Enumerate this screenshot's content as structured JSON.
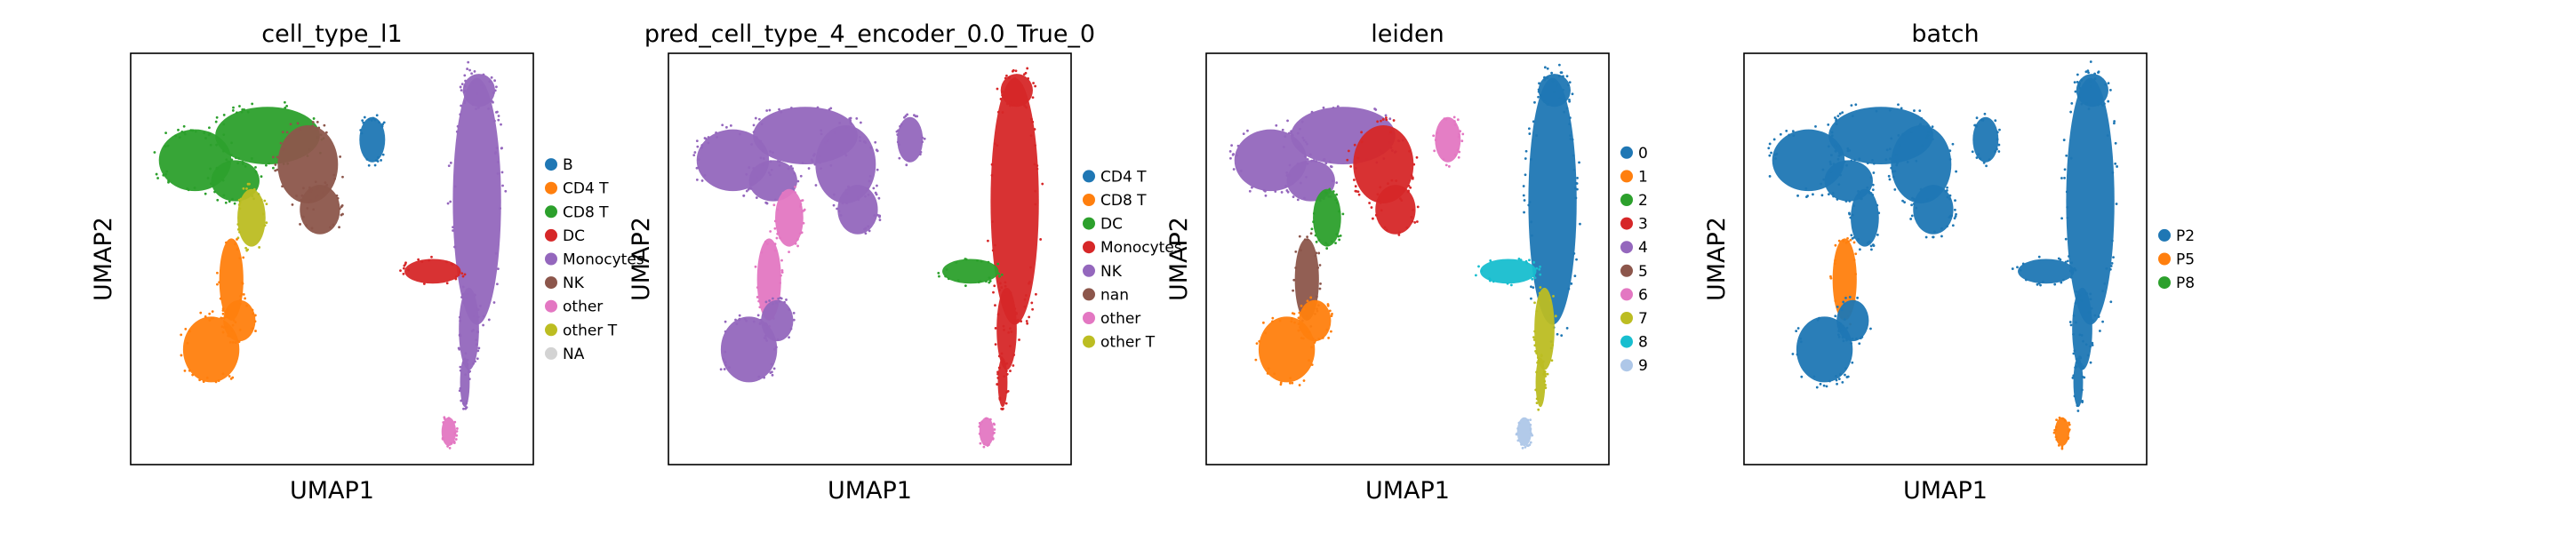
{
  "chart_data": [
    {
      "type": "scatter",
      "title": "cell_type_l1",
      "xlabel": "UMAP1",
      "ylabel": "UMAP2",
      "grid": false,
      "ticks": false,
      "legend": {
        "placement": "right",
        "entries": [
          {
            "label": "B",
            "color": "#1f77b4"
          },
          {
            "label": "CD4 T",
            "color": "#ff7f0e"
          },
          {
            "label": "CD8 T",
            "color": "#2ca02c"
          },
          {
            "label": "DC",
            "color": "#d62728"
          },
          {
            "label": "Monocytes",
            "color": "#9467bd"
          },
          {
            "label": "NK",
            "color": "#8c564b"
          },
          {
            "label": "other",
            "color": "#e377c2"
          },
          {
            "label": "other T",
            "color": "#bcbd22"
          },
          {
            "label": "NA",
            "color": "#d3d3d3"
          }
        ]
      },
      "regions": [
        {
          "shape": "left_loop",
          "category": "CD8 T"
        },
        {
          "shape": "loop_center",
          "category": "other T"
        },
        {
          "shape": "arm",
          "category": "NK"
        },
        {
          "shape": "stem",
          "category": "CD4 T"
        },
        {
          "shape": "foot",
          "category": "CD4 T"
        },
        {
          "shape": "small_blob",
          "category": "B"
        },
        {
          "shape": "tall_cluster",
          "category": "Monocytes"
        },
        {
          "shape": "bridge",
          "category": "DC"
        },
        {
          "shape": "tail",
          "category": "Monocytes"
        },
        {
          "shape": "tail_end",
          "category": "other"
        }
      ]
    },
    {
      "type": "scatter",
      "title": "pred_cell_type_4_encoder_0.0_True_0",
      "xlabel": "UMAP1",
      "ylabel": "UMAP2",
      "grid": false,
      "ticks": false,
      "legend": {
        "placement": "right",
        "entries": [
          {
            "label": "CD4 T",
            "color": "#1f77b4"
          },
          {
            "label": "CD8 T",
            "color": "#ff7f0e"
          },
          {
            "label": "DC",
            "color": "#2ca02c"
          },
          {
            "label": "Monocytes",
            "color": "#d62728"
          },
          {
            "label": "NK",
            "color": "#9467bd"
          },
          {
            "label": "nan",
            "color": "#8c564b"
          },
          {
            "label": "other",
            "color": "#e377c2"
          },
          {
            "label": "other T",
            "color": "#bcbd22"
          }
        ]
      },
      "regions": [
        {
          "shape": "left_loop",
          "category": "NK"
        },
        {
          "shape": "loop_center",
          "category": "other"
        },
        {
          "shape": "arm",
          "category": "NK"
        },
        {
          "shape": "stem",
          "category": "other"
        },
        {
          "shape": "foot",
          "category": "NK"
        },
        {
          "shape": "small_blob",
          "category": "NK"
        },
        {
          "shape": "tall_cluster",
          "category": "Monocytes"
        },
        {
          "shape": "bridge",
          "category": "DC"
        },
        {
          "shape": "tail",
          "category": "Monocytes"
        },
        {
          "shape": "tail_end",
          "category": "other"
        }
      ]
    },
    {
      "type": "scatter",
      "title": "leiden",
      "xlabel": "UMAP1",
      "ylabel": "UMAP2",
      "grid": false,
      "ticks": false,
      "legend": {
        "placement": "right",
        "entries": [
          {
            "label": "0",
            "color": "#1f77b4"
          },
          {
            "label": "1",
            "color": "#ff7f0e"
          },
          {
            "label": "2",
            "color": "#2ca02c"
          },
          {
            "label": "3",
            "color": "#d62728"
          },
          {
            "label": "4",
            "color": "#9467bd"
          },
          {
            "label": "5",
            "color": "#8c564b"
          },
          {
            "label": "6",
            "color": "#e377c2"
          },
          {
            "label": "7",
            "color": "#bcbd22"
          },
          {
            "label": "8",
            "color": "#17becf"
          },
          {
            "label": "9",
            "color": "#aec7e8"
          }
        ]
      },
      "regions": [
        {
          "shape": "left_loop",
          "category": "4"
        },
        {
          "shape": "loop_center",
          "category": "2"
        },
        {
          "shape": "arm",
          "category": "3"
        },
        {
          "shape": "stem",
          "category": "5"
        },
        {
          "shape": "foot",
          "category": "1"
        },
        {
          "shape": "small_blob",
          "category": "6"
        },
        {
          "shape": "tall_cluster",
          "category": "0"
        },
        {
          "shape": "bridge",
          "category": "8"
        },
        {
          "shape": "tail",
          "category": "7"
        },
        {
          "shape": "tail_end",
          "category": "9"
        }
      ]
    },
    {
      "type": "scatter",
      "title": "batch",
      "xlabel": "UMAP1",
      "ylabel": "UMAP2",
      "grid": false,
      "ticks": false,
      "legend": {
        "placement": "right",
        "entries": [
          {
            "label": "P2",
            "color": "#1f77b4"
          },
          {
            "label": "P5",
            "color": "#ff7f0e"
          },
          {
            "label": "P8",
            "color": "#2ca02c"
          }
        ]
      },
      "regions": [
        {
          "shape": "left_loop",
          "category": "P2"
        },
        {
          "shape": "loop_center",
          "category": "P2"
        },
        {
          "shape": "arm",
          "category": "P2"
        },
        {
          "shape": "stem",
          "category": "P5"
        },
        {
          "shape": "foot",
          "category": "P2"
        },
        {
          "shape": "small_blob",
          "category": "P2"
        },
        {
          "shape": "tall_cluster",
          "category": "P2"
        },
        {
          "shape": "bridge",
          "category": "P2"
        },
        {
          "shape": "tail",
          "category": "P2"
        },
        {
          "shape": "tail_end",
          "category": "P5"
        }
      ]
    }
  ]
}
